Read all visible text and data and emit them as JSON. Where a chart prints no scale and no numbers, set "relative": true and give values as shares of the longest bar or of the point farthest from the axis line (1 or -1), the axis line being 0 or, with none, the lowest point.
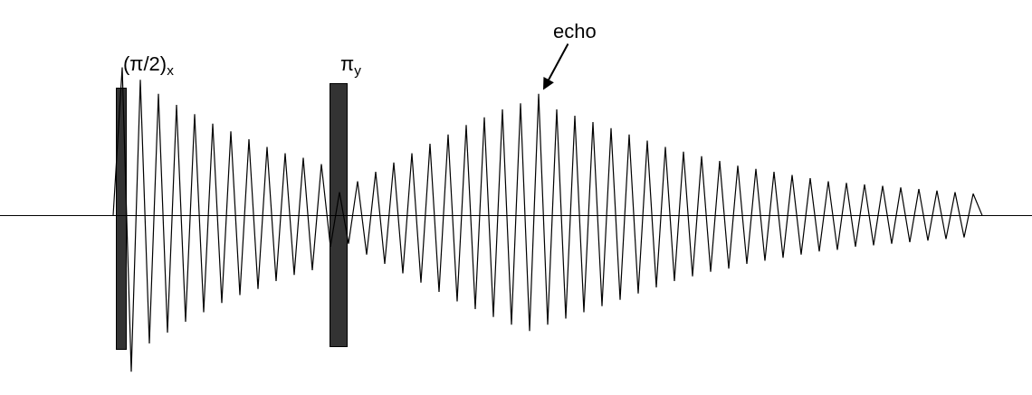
{
  "chart_data": {
    "type": "line",
    "relative": true,
    "grid": false,
    "marker": "none",
    "line_style": "solid",
    "categories": [
      null,
      null,
      null,
      null,
      null,
      null,
      null,
      null,
      null,
      null,
      null,
      null,
      null,
      null,
      null,
      null,
      null,
      null,
      null,
      null,
      null,
      null,
      null,
      null,
      null,
      null,
      null,
      null,
      null,
      null,
      null,
      null,
      null,
      null,
      null,
      null,
      null,
      null,
      null,
      null,
      null,
      null,
      null,
      null,
      null,
      null,
      null,
      null,
      null,
      null,
      null,
      null,
      null,
      null,
      null,
      null,
      null,
      null,
      null,
      null,
      null,
      null,
      null,
      null,
      null,
      null,
      null,
      null,
      null,
      null,
      null,
      null,
      null,
      null,
      null,
      null,
      null,
      null,
      null,
      null,
      null,
      null,
      null,
      null,
      null,
      null,
      null,
      null,
      null,
      null,
      null,
      null,
      null,
      null,
      null,
      null,
      null,
      null,
      null,
      null,
      null,
      null,
      null,
      null,
      null,
      null,
      null,
      null,
      null,
      null,
      null,
      null,
      null
    ],
    "series": [
      {
        "color": "#000000",
        "values": [
          0,
          0,
          0,
          0,
          0,
          0,
          0,
          0,
          0,
          0,
          0,
          0,
          0.95,
          -1,
          0.87,
          -0.82,
          0.78,
          -0.75,
          0.71,
          -0.68,
          0.65,
          -0.62,
          0.59,
          -0.56,
          0.54,
          -0.51,
          0.49,
          -0.47,
          0.44,
          -0.42,
          0.4,
          -0.38,
          0.37,
          -0.35,
          0.33,
          -0.2,
          0.15,
          -0.18,
          0.22,
          -0.25,
          0.28,
          -0.31,
          0.34,
          -0.37,
          0.4,
          -0.43,
          0.46,
          -0.49,
          0.52,
          -0.55,
          0.58,
          -0.6,
          0.63,
          -0.65,
          0.68,
          -0.7,
          0.72,
          -0.74,
          0.78,
          -0.7,
          0.68,
          -0.66,
          0.64,
          -0.62,
          0.6,
          -0.58,
          0.56,
          -0.54,
          0.52,
          -0.5,
          0.48,
          -0.46,
          0.44,
          -0.42,
          0.41,
          -0.39,
          0.38,
          -0.36,
          0.35,
          -0.34,
          0.32,
          -0.31,
          0.3,
          -0.29,
          0.28,
          -0.27,
          0.26,
          -0.25,
          0.24,
          -0.23,
          0.22,
          -0.22,
          0.21,
          -0.2,
          0.2,
          -0.19,
          0.19,
          -0.18,
          0.18,
          -0.17,
          0.17,
          -0.16,
          0.16,
          -0.15,
          0.15,
          -0.14,
          0.14,
          0,
          0,
          0,
          0,
          0,
          0
        ]
      }
    ],
    "annotations": [
      "(π/2)$_{x}$",
      "π$_{y}$",
      "echo"
    ]
  }
}
